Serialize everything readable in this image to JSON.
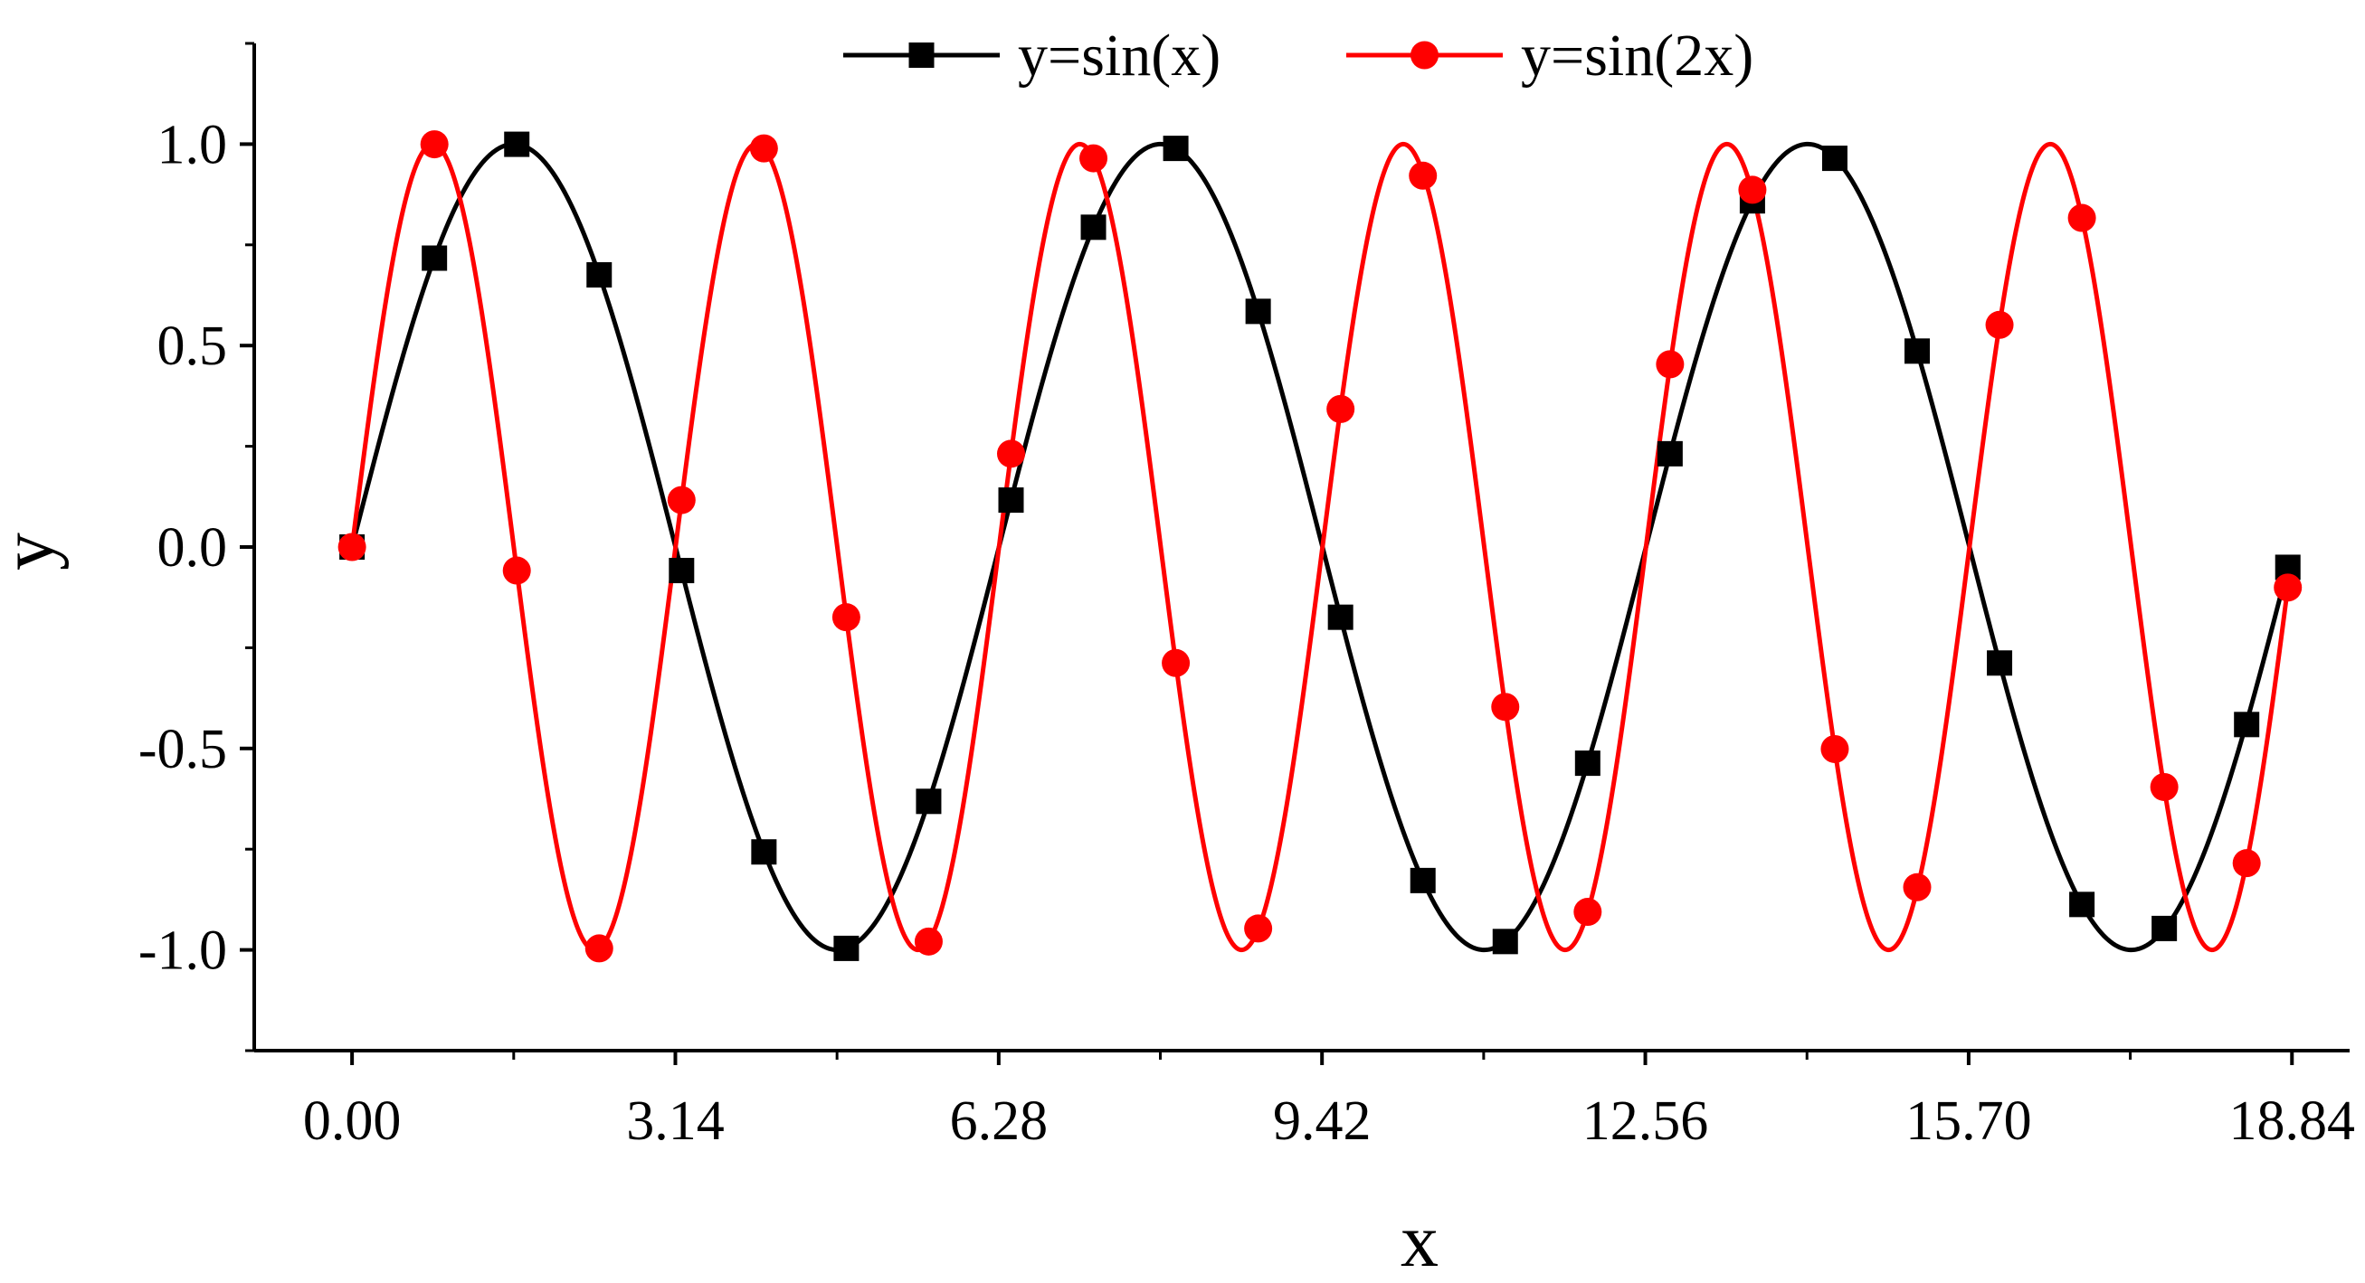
{
  "chart_data": {
    "type": "line",
    "title": "",
    "xlabel": "x",
    "ylabel": "y",
    "xlim": [
      -0.95,
      19.4
    ],
    "ylim": [
      -1.25,
      1.25
    ],
    "xticks": [
      0,
      3.14,
      6.28,
      9.42,
      12.56,
      15.7,
      18.84
    ],
    "xtick_labels": [
      "0.00",
      "3.14",
      "6.28",
      "9.42",
      "12.56",
      "15.70",
      "18.84"
    ],
    "yticks": [
      1.0,
      0.5,
      0.0,
      -0.5,
      -1.0
    ],
    "ytick_labels": [
      "1.0",
      "0.5",
      "0.0",
      "-0.5",
      "-1.0"
    ],
    "grid": false,
    "legend_position": "top-center",
    "series": [
      {
        "name": "y=sin(x)",
        "color": "#000000",
        "marker": "square",
        "curve_function": "sin(x)",
        "x": [
          0.0,
          0.8,
          1.6,
          2.4,
          3.2,
          4.0,
          4.8,
          5.6,
          6.4,
          7.2,
          8.0,
          8.8,
          9.6,
          10.4,
          11.2,
          12.0,
          12.8,
          13.6,
          14.4,
          15.2,
          16.0,
          16.8,
          17.6,
          18.4,
          18.8
        ],
        "y": [
          0.0,
          0.717,
          0.9996,
          0.6755,
          -0.0584,
          -0.7568,
          -0.9962,
          -0.6313,
          0.1165,
          0.7937,
          0.9894,
          0.5849,
          -0.1743,
          -0.8278,
          -0.9792,
          -0.5366,
          0.2315,
          0.8591,
          0.9648,
          0.4863,
          -0.2879,
          -0.8872,
          -0.9468,
          -0.4406,
          -0.0504
        ]
      },
      {
        "name": "y=sin(2x)",
        "color": "#ff0000",
        "marker": "circle",
        "curve_function": "sin(2x)",
        "x": [
          0.0,
          0.8,
          1.6,
          2.4,
          3.2,
          4.0,
          4.8,
          5.6,
          6.4,
          7.2,
          8.0,
          8.8,
          9.6,
          10.4,
          11.2,
          12.0,
          12.8,
          13.6,
          14.4,
          15.2,
          16.0,
          16.8,
          17.6,
          18.4,
          18.8
        ],
        "y": [
          0.0,
          0.9996,
          -0.0584,
          -0.9962,
          0.1165,
          0.9894,
          -0.1743,
          -0.9792,
          0.2315,
          0.9648,
          -0.2879,
          -0.9468,
          0.3425,
          0.9217,
          -0.3969,
          -0.9056,
          0.4536,
          0.8867,
          -0.5015,
          -0.8445,
          0.5514,
          0.8168,
          -0.5958,
          -0.7847,
          -0.1006
        ]
      }
    ]
  }
}
